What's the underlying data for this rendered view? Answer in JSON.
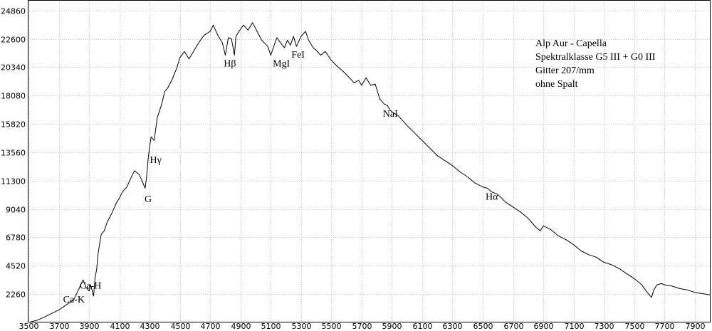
{
  "chart_data": {
    "type": "line",
    "title": "",
    "xlabel": "",
    "ylabel": "",
    "xlim": [
      3500,
      8000
    ],
    "ylim": [
      0,
      25700
    ],
    "grid": true,
    "x_ticks": [
      3500,
      3700,
      3900,
      4100,
      4300,
      4500,
      4700,
      4900,
      5100,
      5300,
      5500,
      5700,
      5900,
      6100,
      6300,
      6500,
      6700,
      6900,
      7100,
      7300,
      7500,
      7700,
      7900
    ],
    "y_ticks": [
      2260,
      4520,
      6780,
      9040,
      11300,
      13560,
      15820,
      18080,
      20340,
      22600,
      24860
    ],
    "info_lines": [
      "Alp Aur - Capella",
      "Spektralklasse G5 III + G0 III",
      "Gitter 207/mm",
      "ohne Spalt"
    ],
    "annotations": [
      {
        "label": "Ca-K",
        "x": 3800,
        "y": 1600
      },
      {
        "label": "Ca-H",
        "x": 3910,
        "y": 2700
      },
      {
        "label": "G",
        "x": 4290,
        "y": 9600
      },
      {
        "label": "Hγ",
        "x": 4340,
        "y": 12700
      },
      {
        "label": "Hβ",
        "x": 4830,
        "y": 20400
      },
      {
        "label": "MgI",
        "x": 5170,
        "y": 20400
      },
      {
        "label": "FeI",
        "x": 5280,
        "y": 21100
      },
      {
        "label": "NaI",
        "x": 5890,
        "y": 16400
      },
      {
        "label": "Hα",
        "x": 6560,
        "y": 9800
      }
    ],
    "series": [
      {
        "x": [
          3500,
          3550,
          3600,
          3650,
          3700,
          3750,
          3780,
          3800,
          3830,
          3860,
          3880,
          3900,
          3910,
          3930,
          3940,
          3950,
          3960,
          3970,
          3980,
          4000,
          4020,
          4050,
          4080,
          4100,
          4120,
          4150,
          4180,
          4200,
          4230,
          4250,
          4270,
          4280,
          4290,
          4300,
          4310,
          4330,
          4350,
          4380,
          4400,
          4420,
          4450,
          4480,
          4500,
          4530,
          4560,
          4600,
          4630,
          4660,
          4700,
          4720,
          4750,
          4780,
          4800,
          4820,
          4840,
          4850,
          4860,
          4870,
          4890,
          4920,
          4950,
          4980,
          5010,
          5040,
          5080,
          5100,
          5120,
          5140,
          5170,
          5190,
          5210,
          5230,
          5250,
          5270,
          5300,
          5330,
          5350,
          5380,
          5400,
          5430,
          5460,
          5500,
          5540,
          5580,
          5620,
          5650,
          5680,
          5700,
          5730,
          5760,
          5790,
          5820,
          5850,
          5870,
          5890,
          5910,
          5940,
          5970,
          6000,
          6050,
          6100,
          6150,
          6200,
          6250,
          6300,
          6350,
          6400,
          6450,
          6500,
          6530,
          6560,
          6600,
          6650,
          6700,
          6750,
          6800,
          6850,
          6880,
          6900,
          6950,
          7000,
          7050,
          7100,
          7150,
          7200,
          7250,
          7300,
          7350,
          7400,
          7450,
          7500,
          7550,
          7580,
          7600,
          7615,
          7630,
          7650,
          7680,
          7700,
          7750,
          7800,
          7850,
          7900,
          7950,
          8000
        ],
        "values": [
          0,
          150,
          400,
          700,
          1000,
          1400,
          1650,
          1850,
          2600,
          3400,
          2800,
          2500,
          3000,
          2100,
          3600,
          4200,
          5500,
          6300,
          7000,
          7300,
          8000,
          8700,
          9500,
          9900,
          10400,
          10800,
          11600,
          12100,
          11800,
          11300,
          10700,
          11600,
          13000,
          14000,
          14800,
          14500,
          16300,
          17400,
          18400,
          18700,
          19400,
          20300,
          21100,
          21600,
          21000,
          21800,
          22400,
          22900,
          23200,
          23700,
          22900,
          22300,
          21300,
          22700,
          22600,
          22000,
          21300,
          22800,
          23200,
          23700,
          23300,
          23900,
          23200,
          22500,
          22000,
          21300,
          22000,
          22700,
          22200,
          21900,
          22500,
          22100,
          22800,
          22000,
          22800,
          23200,
          22500,
          21900,
          21700,
          21300,
          21600,
          20900,
          20400,
          20000,
          19500,
          19100,
          19300,
          18900,
          19500,
          18900,
          19000,
          17800,
          17400,
          17300,
          16900,
          16700,
          16500,
          16100,
          15700,
          15100,
          14500,
          13900,
          13300,
          12900,
          12500,
          12000,
          11600,
          11100,
          10800,
          10700,
          10400,
          10200,
          9600,
          9200,
          8800,
          8300,
          7600,
          7300,
          7700,
          7400,
          6900,
          6600,
          6200,
          5700,
          5400,
          5200,
          4800,
          4600,
          4300,
          3900,
          3500,
          3000,
          2500,
          2200,
          2000,
          2600,
          3000,
          3100,
          3000,
          2900,
          2700,
          2600,
          2400,
          2300,
          2200
        ]
      }
    ]
  }
}
